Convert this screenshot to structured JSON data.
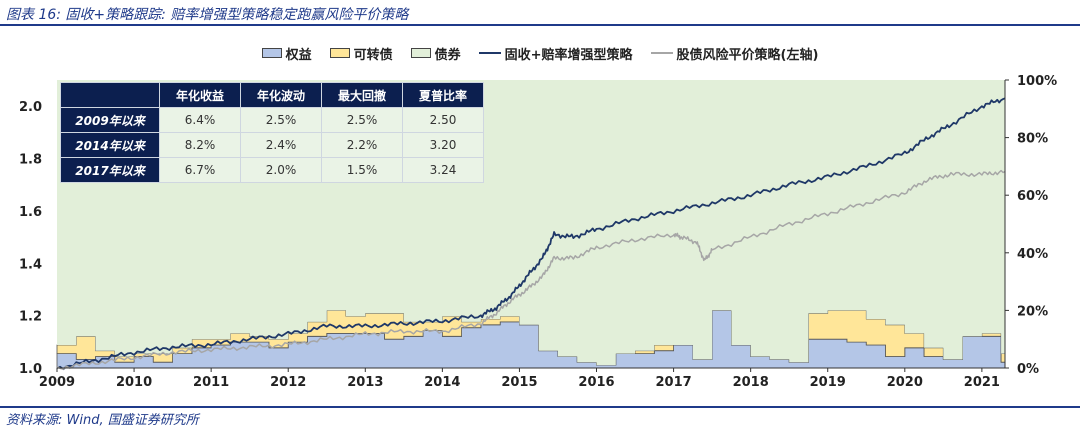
{
  "figure": {
    "title": "图表 16:  固收+策略跟踪:  赔率增强型策略稳定跑赢风险平价策略",
    "source": "资料来源:  Wind, 国盛证券研究所"
  },
  "colors": {
    "plot_bg": "#ebf5e6",
    "equity_fill": "#b4c6e7",
    "convertible_fill": "#ffe699",
    "bond_fill": "#e2efd9",
    "fixed_plus_line": "#1f3868",
    "risk_parity_line": "#a6a6a6",
    "title_blue": "#1f3a8a",
    "table_head": "#0c1f4f"
  },
  "legend": [
    {
      "label": "权益",
      "kind": "swatch",
      "color": "#b4c6e7"
    },
    {
      "label": "可转债",
      "kind": "swatch",
      "color": "#ffe699"
    },
    {
      "label": "债券",
      "kind": "swatch",
      "color": "#e2efd9"
    },
    {
      "label": "固收+赔率增强型策略",
      "kind": "line",
      "color": "#1f3868"
    },
    {
      "label": "股债风险平价策略(左轴)",
      "kind": "line",
      "color": "#a6a6a6"
    }
  ],
  "table": {
    "headers": [
      "年化收益",
      "年化波动",
      "最大回撤",
      "夏普比率"
    ],
    "rows": [
      {
        "label": "2009年以来",
        "values": [
          "6.4%",
          "2.5%",
          "2.5%",
          "2.50"
        ]
      },
      {
        "label": "2014年以来",
        "values": [
          "8.2%",
          "2.4%",
          "2.2%",
          "3.20"
        ]
      },
      {
        "label": "2017年以来",
        "values": [
          "6.7%",
          "2.0%",
          "1.5%",
          "3.24"
        ]
      }
    ]
  },
  "chart_data": {
    "type": "area",
    "x_axis": {
      "ticks": [
        "2009",
        "2010",
        "2011",
        "2012",
        "2013",
        "2014",
        "2015",
        "2016",
        "2017",
        "2018",
        "2019",
        "2020",
        "2021"
      ],
      "range": [
        2009,
        2021.3
      ]
    },
    "y_left": {
      "ticks": [
        "1.0",
        "1.2",
        "1.4",
        "1.6",
        "1.8",
        "2.0"
      ],
      "range": [
        1.0,
        2.1
      ]
    },
    "y_right": {
      "ticks": [
        "0%",
        "20%",
        "40%",
        "60%",
        "80%",
        "100%"
      ],
      "range": [
        0,
        1.0
      ]
    },
    "grid": false,
    "legend_position": "top",
    "allocation": {
      "x": [
        2009.0,
        2009.25,
        2009.5,
        2009.75,
        2010.0,
        2010.25,
        2010.5,
        2010.75,
        2011.0,
        2011.25,
        2011.5,
        2011.75,
        2012.0,
        2012.25,
        2012.5,
        2012.75,
        2013.0,
        2013.25,
        2013.5,
        2013.75,
        2014.0,
        2014.25,
        2014.5,
        2014.75,
        2015.0,
        2015.25,
        2015.5,
        2015.75,
        2016.0,
        2016.25,
        2016.5,
        2016.75,
        2017.0,
        2017.25,
        2017.5,
        2017.75,
        2018.0,
        2018.25,
        2018.5,
        2018.75,
        2019.0,
        2019.25,
        2019.5,
        2019.75,
        2020.0,
        2020.25,
        2020.5,
        2020.75,
        2021.0,
        2021.25
      ],
      "series": [
        {
          "name": "权益",
          "values": [
            0.05,
            0.03,
            0.04,
            0.02,
            0.04,
            0.02,
            0.05,
            0.07,
            0.08,
            0.09,
            0.09,
            0.07,
            0.09,
            0.11,
            0.12,
            0.12,
            0.12,
            0.1,
            0.11,
            0.13,
            0.11,
            0.14,
            0.15,
            0.16,
            0.15,
            0.06,
            0.04,
            0.02,
            0.01,
            0.05,
            0.05,
            0.06,
            0.08,
            0.03,
            0.2,
            0.08,
            0.04,
            0.03,
            0.02,
            0.1,
            0.1,
            0.09,
            0.08,
            0.04,
            0.07,
            0.04,
            0.03,
            0.11,
            0.11,
            0.02
          ]
        },
        {
          "name": "可转债",
          "values": [
            0.03,
            0.08,
            0.02,
            0.02,
            0.01,
            0.03,
            0.02,
            0.03,
            0.02,
            0.03,
            0.02,
            0.03,
            0.03,
            0.05,
            0.08,
            0.06,
            0.07,
            0.09,
            0.05,
            0.03,
            0.07,
            0.02,
            0.02,
            0.02,
            0.0,
            0.0,
            0.0,
            0.0,
            0.0,
            0.0,
            0.01,
            0.02,
            0.0,
            0.0,
            0.0,
            0.0,
            0.0,
            0.0,
            0.0,
            0.09,
            0.1,
            0.11,
            0.09,
            0.11,
            0.05,
            0.03,
            0.0,
            0.0,
            0.01,
            0.03
          ]
        },
        {
          "name": "债券",
          "values": [
            0.92,
            0.89,
            0.94,
            0.96,
            0.95,
            0.95,
            0.93,
            0.9,
            0.9,
            0.88,
            0.89,
            0.9,
            0.88,
            0.84,
            0.8,
            0.82,
            0.81,
            0.81,
            0.84,
            0.84,
            0.82,
            0.84,
            0.83,
            0.82,
            0.85,
            0.94,
            0.96,
            0.98,
            0.99,
            0.95,
            0.94,
            0.92,
            0.92,
            0.97,
            0.8,
            0.92,
            0.96,
            0.97,
            0.98,
            0.81,
            0.8,
            0.8,
            0.83,
            0.85,
            0.88,
            0.93,
            0.97,
            0.89,
            0.88,
            0.95
          ]
        }
      ]
    },
    "lines": [
      {
        "name": "固收+赔率增强型策略",
        "axis": "left",
        "x": [
          2009.0,
          2009.5,
          2010.0,
          2010.5,
          2011.0,
          2011.5,
          2012.0,
          2012.5,
          2013.0,
          2013.5,
          2014.0,
          2014.5,
          2014.7,
          2014.9,
          2015.1,
          2015.3,
          2015.45,
          2015.7,
          2016.0,
          2016.5,
          2017.0,
          2017.5,
          2018.0,
          2018.5,
          2019.0,
          2019.5,
          2020.0,
          2020.3,
          2020.6,
          2021.0,
          2021.3
        ],
        "y": [
          1.0,
          1.03,
          1.06,
          1.08,
          1.09,
          1.11,
          1.13,
          1.16,
          1.16,
          1.17,
          1.18,
          1.2,
          1.23,
          1.28,
          1.35,
          1.42,
          1.51,
          1.5,
          1.53,
          1.57,
          1.6,
          1.63,
          1.66,
          1.7,
          1.73,
          1.77,
          1.82,
          1.88,
          1.93,
          2.0,
          2.03
        ]
      },
      {
        "name": "股债风险平价策略(左轴)",
        "axis": "left",
        "x": [
          2009.0,
          2009.5,
          2010.0,
          2010.5,
          2011.0,
          2011.5,
          2012.0,
          2012.5,
          2013.0,
          2013.5,
          2014.0,
          2014.5,
          2014.7,
          2014.9,
          2015.1,
          2015.3,
          2015.45,
          2015.7,
          2016.0,
          2016.5,
          2017.0,
          2017.1,
          2017.3,
          2017.4,
          2017.5,
          2018.0,
          2018.5,
          2019.0,
          2019.5,
          2020.0,
          2020.3,
          2020.6,
          2021.0,
          2021.3
        ],
        "y": [
          1.0,
          1.02,
          1.04,
          1.06,
          1.07,
          1.08,
          1.09,
          1.11,
          1.13,
          1.14,
          1.14,
          1.17,
          1.21,
          1.26,
          1.3,
          1.35,
          1.42,
          1.42,
          1.46,
          1.49,
          1.51,
          1.5,
          1.48,
          1.41,
          1.45,
          1.5,
          1.55,
          1.59,
          1.63,
          1.67,
          1.72,
          1.74,
          1.74,
          1.75
        ]
      }
    ]
  }
}
